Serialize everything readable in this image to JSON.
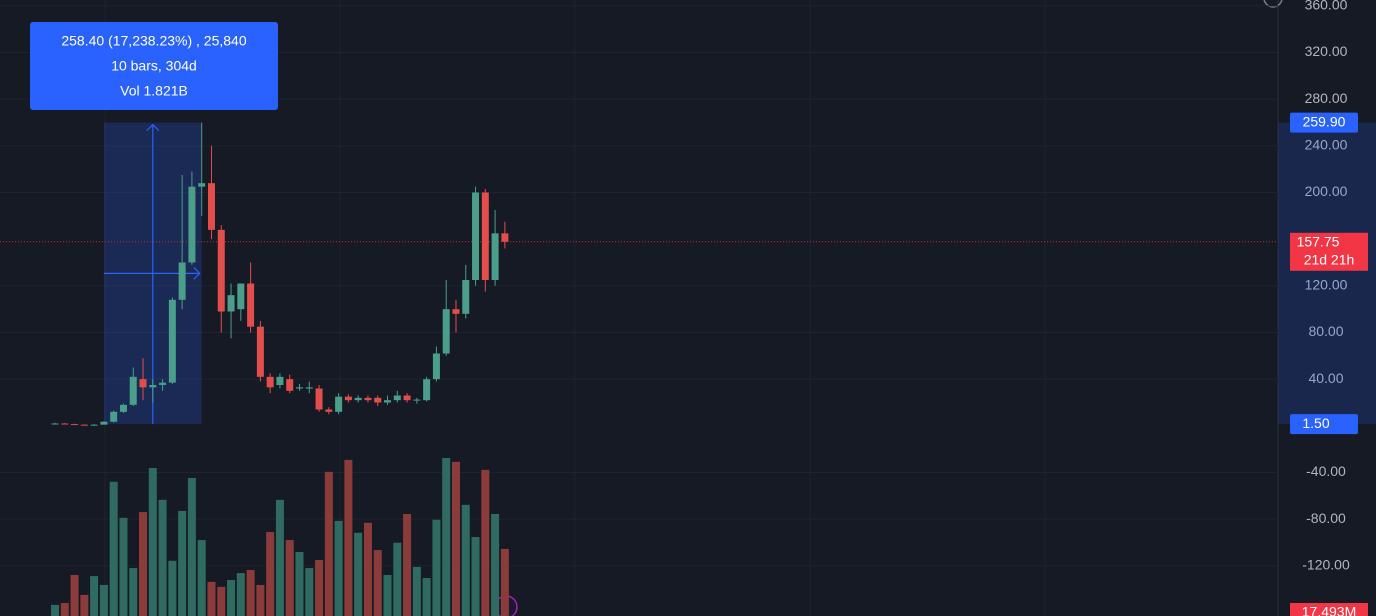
{
  "chart_data": {
    "type": "candlestick",
    "open": [
      1.5,
      2,
      1.5,
      1,
      0.8,
      1,
      3.5,
      12,
      18,
      40,
      33,
      35,
      37,
      108,
      140,
      205,
      208,
      168,
      98,
      100,
      122,
      85,
      42,
      35,
      40,
      32,
      32,
      32,
      14,
      12,
      25,
      22,
      24,
      24,
      20,
      22,
      26,
      22,
      22,
      40,
      62,
      100,
      96,
      125,
      200,
      125,
      165
    ],
    "high": [
      2.5,
      2.5,
      1.8,
      1.2,
      1.5,
      4,
      13,
      19,
      50,
      58,
      40,
      40,
      110,
      215,
      218,
      259.9,
      240,
      172,
      122,
      122,
      140,
      90,
      45,
      45,
      44,
      36,
      38,
      35,
      16,
      28,
      27,
      26,
      26,
      26,
      26,
      30,
      28,
      24,
      42,
      68,
      125,
      108,
      138,
      205,
      203,
      185,
      175
    ],
    "low": [
      1,
      1.5,
      0.8,
      0.5,
      0.5,
      1,
      3,
      11,
      17,
      22,
      20,
      30,
      36,
      100,
      138,
      180,
      160,
      80,
      75,
      90,
      80,
      38,
      28,
      32,
      28,
      30,
      28,
      12,
      10,
      10,
      20,
      20,
      20,
      17,
      18,
      20,
      20,
      19,
      21,
      38,
      60,
      80,
      92,
      120,
      115,
      120,
      152
    ],
    "close": [
      2,
      1.5,
      1,
      0.8,
      1,
      3.5,
      12,
      18,
      42,
      33,
      35,
      37,
      108,
      140,
      205,
      208,
      168,
      98,
      112,
      122,
      85,
      42,
      33,
      42,
      30,
      33,
      33,
      14,
      12,
      25,
      22,
      24,
      22,
      20,
      22,
      26,
      22,
      22.5,
      40,
      62,
      100,
      96,
      125,
      200,
      125,
      165,
      157.75
    ],
    "volume": [
      2.9,
      3.4,
      10.7,
      5.5,
      10.4,
      8.1,
      35,
      25.6,
      12.5,
      27.1,
      38.6,
      30.3,
      14.4,
      27.4,
      36,
      19.8,
      8.9,
      7.6,
      9.4,
      11.2,
      12,
      8.1,
      21.9,
      30.3,
      19.8,
      16.7,
      12.5,
      14.6,
      37.6,
      24.8,
      40.7,
      21.7,
      24.3,
      17.2,
      10.7,
      19.1,
      26.6,
      12.8,
      9.9,
      25.1,
      41.2,
      40.2,
      29,
      20.6,
      38.1,
      26.6,
      17.493
    ],
    "up_color": "#4a9e8a",
    "down_color": "#e24e4c",
    "volume_up_color": "#2f6b61",
    "volume_down_color": "#8b3c3a",
    "ylim": [
      365,
      -163
    ],
    "yticks": [
      {
        "value": 360,
        "label": "360.00"
      },
      {
        "value": 320,
        "label": "320.00"
      },
      {
        "value": 280,
        "label": "280.00"
      },
      {
        "value": 240,
        "label": "240.00"
      },
      {
        "value": 200,
        "label": "200.00"
      },
      {
        "value": 120,
        "label": "120.00"
      },
      {
        "value": 80,
        "label": "80.00"
      },
      {
        "value": 40,
        "label": "40.00"
      },
      {
        "value": -40,
        "label": "-40.00"
      },
      {
        "value": -80,
        "label": "-80.00"
      },
      {
        "value": -120,
        "label": "-120.00"
      }
    ],
    "grid": true,
    "measure_from": {
      "value": 1.5,
      "label": "1.50"
    },
    "measure_to": {
      "value": 259.9,
      "label": "259.90"
    },
    "measure_text": [
      "258.40 (17,238.23%) , 25,840",
      "10 bars, 304d",
      "Vol 1.821B"
    ],
    "last_price": {
      "value": 157.75,
      "label": "157.75"
    },
    "countdown": "21d 21h",
    "last_volume": {
      "value": 17.493,
      "label": "17.493M"
    }
  }
}
